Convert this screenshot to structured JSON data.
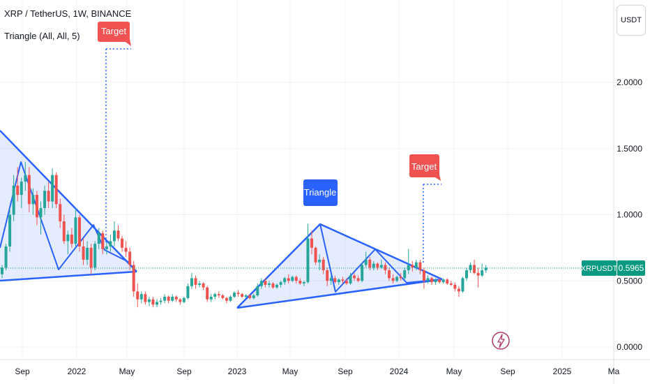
{
  "header": {
    "symbol_line": "XRP / TetherUS, 1W, BINANCE",
    "indicator_line": "Triangle (All, All, 5)",
    "currency_button": "USDT"
  },
  "colors": {
    "up": "#26a69a",
    "down": "#ef5350",
    "pattern": "#2962ff",
    "fill": "rgba(41,98,255,0.12)",
    "target": "#f05252",
    "triangle_label": "#2962ff",
    "price_line": "#089981"
  },
  "chart_data": {
    "type": "candlestick",
    "y_ticks": [
      0.0,
      0.5,
      1.0,
      1.5,
      2.0
    ],
    "y_tick_labels": [
      "0.0000",
      "0.5000",
      "1.0000",
      "1.5000",
      "2.0000"
    ],
    "x_tick_labels": [
      "Sep",
      "2022",
      "May",
      "Sep",
      "2023",
      "May",
      "Sep",
      "2024",
      "May",
      "Sep",
      "2025",
      "Ma"
    ],
    "ylim": [
      -0.08,
      2.55
    ],
    "price_label": {
      "symbol": "XRPUSDT",
      "value": "0.5965",
      "price": 0.5965
    },
    "annotations": {
      "triangle_label": "Triangle",
      "target_labels": [
        "Target",
        "Target"
      ]
    },
    "candles": [
      [
        0.55,
        0.62,
        0.52,
        0.6
      ],
      [
        0.6,
        0.78,
        0.58,
        0.76
      ],
      [
        0.76,
        1.05,
        0.72,
        1.0
      ],
      [
        1.0,
        1.3,
        0.95,
        1.22
      ],
      [
        1.22,
        1.36,
        1.1,
        1.15
      ],
      [
        1.15,
        1.28,
        1.05,
        1.25
      ],
      [
        1.25,
        1.4,
        1.18,
        1.3
      ],
      [
        1.3,
        1.36,
        1.02,
        1.08
      ],
      [
        1.08,
        1.2,
        1.0,
        1.15
      ],
      [
        1.15,
        1.18,
        0.92,
        0.98
      ],
      [
        0.98,
        1.1,
        0.85,
        1.05
      ],
      [
        1.05,
        1.22,
        1.0,
        1.18
      ],
      [
        1.18,
        1.25,
        1.05,
        1.1
      ],
      [
        1.1,
        1.35,
        1.05,
        1.3
      ],
      [
        1.3,
        1.32,
        1.05,
        1.08
      ],
      [
        1.08,
        1.12,
        0.9,
        0.95
      ],
      [
        0.95,
        1.0,
        0.78,
        0.8
      ],
      [
        0.8,
        0.88,
        0.7,
        0.85
      ],
      [
        0.85,
        0.9,
        0.75,
        0.78
      ],
      [
        0.78,
        1.05,
        0.75,
        0.98
      ],
      [
        0.98,
        1.0,
        0.72,
        0.76
      ],
      [
        0.76,
        0.82,
        0.62,
        0.66
      ],
      [
        0.66,
        0.8,
        0.62,
        0.75
      ],
      [
        0.75,
        0.78,
        0.55,
        0.6
      ],
      [
        0.6,
        0.8,
        0.58,
        0.78
      ],
      [
        0.78,
        0.9,
        0.74,
        0.86
      ],
      [
        0.86,
        0.88,
        0.7,
        0.74
      ],
      [
        0.74,
        0.8,
        0.7,
        0.76
      ],
      [
        0.76,
        0.85,
        0.72,
        0.8
      ],
      [
        0.8,
        0.95,
        0.76,
        0.88
      ],
      [
        0.88,
        0.92,
        0.8,
        0.82
      ],
      [
        0.82,
        0.84,
        0.72,
        0.75
      ],
      [
        0.75,
        0.8,
        0.68,
        0.72
      ],
      [
        0.72,
        0.75,
        0.58,
        0.62
      ],
      [
        0.62,
        0.65,
        0.38,
        0.42
      ],
      [
        0.42,
        0.48,
        0.3,
        0.36
      ],
      [
        0.36,
        0.42,
        0.33,
        0.4
      ],
      [
        0.4,
        0.42,
        0.32,
        0.34
      ],
      [
        0.34,
        0.38,
        0.31,
        0.36
      ],
      [
        0.36,
        0.38,
        0.3,
        0.32
      ],
      [
        0.32,
        0.36,
        0.3,
        0.34
      ],
      [
        0.34,
        0.37,
        0.32,
        0.35
      ],
      [
        0.35,
        0.4,
        0.33,
        0.38
      ],
      [
        0.38,
        0.39,
        0.33,
        0.35
      ],
      [
        0.35,
        0.4,
        0.34,
        0.38
      ],
      [
        0.38,
        0.39,
        0.34,
        0.36
      ],
      [
        0.36,
        0.37,
        0.32,
        0.34
      ],
      [
        0.34,
        0.38,
        0.33,
        0.37
      ],
      [
        0.37,
        0.48,
        0.36,
        0.46
      ],
      [
        0.46,
        0.56,
        0.44,
        0.52
      ],
      [
        0.52,
        0.54,
        0.44,
        0.47
      ],
      [
        0.47,
        0.5,
        0.45,
        0.48
      ],
      [
        0.48,
        0.49,
        0.43,
        0.45
      ],
      [
        0.45,
        0.46,
        0.34,
        0.36
      ],
      [
        0.36,
        0.4,
        0.34,
        0.38
      ],
      [
        0.38,
        0.41,
        0.36,
        0.4
      ],
      [
        0.4,
        0.42,
        0.37,
        0.39
      ],
      [
        0.39,
        0.4,
        0.36,
        0.37
      ],
      [
        0.37,
        0.38,
        0.33,
        0.35
      ],
      [
        0.35,
        0.39,
        0.34,
        0.38
      ],
      [
        0.38,
        0.42,
        0.37,
        0.41
      ],
      [
        0.41,
        0.43,
        0.38,
        0.4
      ],
      [
        0.4,
        0.41,
        0.37,
        0.38
      ],
      [
        0.38,
        0.4,
        0.37,
        0.39
      ],
      [
        0.39,
        0.4,
        0.36,
        0.37
      ],
      [
        0.37,
        0.4,
        0.36,
        0.39
      ],
      [
        0.39,
        0.48,
        0.38,
        0.46
      ],
      [
        0.46,
        0.52,
        0.44,
        0.5
      ],
      [
        0.5,
        0.52,
        0.45,
        0.47
      ],
      [
        0.47,
        0.5,
        0.45,
        0.48
      ],
      [
        0.48,
        0.49,
        0.44,
        0.45
      ],
      [
        0.45,
        0.48,
        0.44,
        0.47
      ],
      [
        0.47,
        0.5,
        0.45,
        0.49
      ],
      [
        0.49,
        0.53,
        0.47,
        0.52
      ],
      [
        0.52,
        0.55,
        0.48,
        0.5
      ],
      [
        0.5,
        0.54,
        0.49,
        0.53
      ],
      [
        0.53,
        0.54,
        0.48,
        0.5
      ],
      [
        0.5,
        0.52,
        0.47,
        0.48
      ],
      [
        0.48,
        0.5,
        0.46,
        0.49
      ],
      [
        0.49,
        0.93,
        0.48,
        0.82
      ],
      [
        0.82,
        0.88,
        0.7,
        0.75
      ],
      [
        0.75,
        0.76,
        0.62,
        0.64
      ],
      [
        0.64,
        0.7,
        0.58,
        0.66
      ],
      [
        0.66,
        0.68,
        0.55,
        0.58
      ],
      [
        0.58,
        0.6,
        0.46,
        0.5
      ],
      [
        0.5,
        0.54,
        0.47,
        0.52
      ],
      [
        0.52,
        0.54,
        0.48,
        0.49
      ],
      [
        0.49,
        0.52,
        0.47,
        0.51
      ],
      [
        0.51,
        0.53,
        0.48,
        0.5
      ],
      [
        0.5,
        0.52,
        0.47,
        0.48
      ],
      [
        0.48,
        0.56,
        0.47,
        0.54
      ],
      [
        0.54,
        0.56,
        0.5,
        0.52
      ],
      [
        0.52,
        0.54,
        0.49,
        0.5
      ],
      [
        0.5,
        0.64,
        0.49,
        0.62
      ],
      [
        0.62,
        0.72,
        0.6,
        0.66
      ],
      [
        0.66,
        0.68,
        0.58,
        0.6
      ],
      [
        0.6,
        0.65,
        0.58,
        0.63
      ],
      [
        0.63,
        0.64,
        0.58,
        0.6
      ],
      [
        0.6,
        0.66,
        0.59,
        0.62
      ],
      [
        0.62,
        0.64,
        0.55,
        0.58
      ],
      [
        0.58,
        0.6,
        0.5,
        0.52
      ],
      [
        0.52,
        0.55,
        0.48,
        0.5
      ],
      [
        0.5,
        0.54,
        0.49,
        0.53
      ],
      [
        0.53,
        0.56,
        0.5,
        0.52
      ],
      [
        0.52,
        0.6,
        0.51,
        0.58
      ],
      [
        0.58,
        0.74,
        0.55,
        0.62
      ],
      [
        0.62,
        0.65,
        0.57,
        0.6
      ],
      [
        0.6,
        0.66,
        0.58,
        0.64
      ],
      [
        0.64,
        0.66,
        0.55,
        0.58
      ],
      [
        0.58,
        0.6,
        0.44,
        0.5
      ],
      [
        0.5,
        0.54,
        0.48,
        0.52
      ],
      [
        0.52,
        0.53,
        0.47,
        0.49
      ],
      [
        0.49,
        0.52,
        0.47,
        0.51
      ],
      [
        0.51,
        0.52,
        0.48,
        0.49
      ],
      [
        0.49,
        0.52,
        0.48,
        0.51
      ],
      [
        0.51,
        0.52,
        0.47,
        0.48
      ],
      [
        0.48,
        0.5,
        0.46,
        0.47
      ],
      [
        0.47,
        0.49,
        0.42,
        0.44
      ],
      [
        0.44,
        0.46,
        0.38,
        0.42
      ],
      [
        0.42,
        0.53,
        0.41,
        0.52
      ],
      [
        0.52,
        0.6,
        0.5,
        0.58
      ],
      [
        0.58,
        0.64,
        0.56,
        0.62
      ],
      [
        0.62,
        0.66,
        0.55,
        0.56
      ],
      [
        0.56,
        0.6,
        0.45,
        0.54
      ],
      [
        0.54,
        0.63,
        0.53,
        0.58
      ],
      [
        0.58,
        0.62,
        0.56,
        0.6
      ]
    ]
  }
}
